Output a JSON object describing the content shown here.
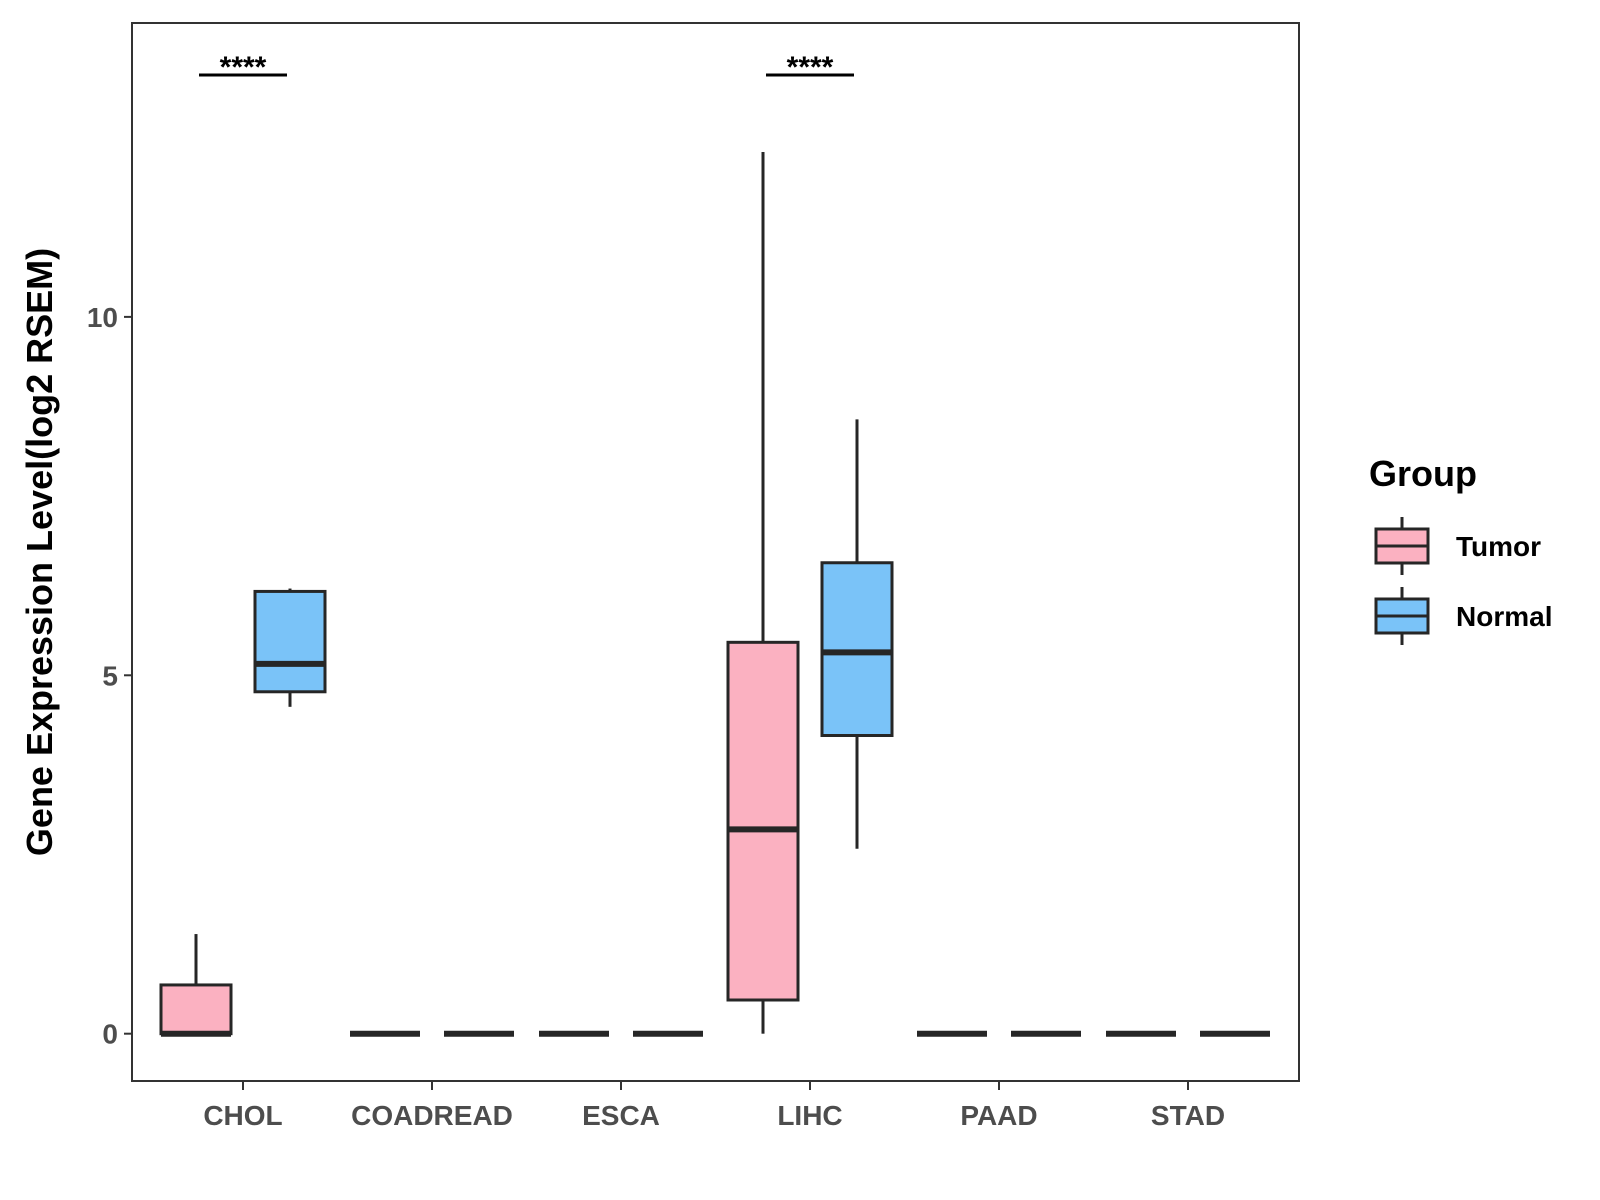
{
  "chart_data": {
    "type": "boxplot",
    "title": "",
    "xlabel": "",
    "ylabel": "Gene Expression Level(log2 RSEM)",
    "categories": [
      "CHOL",
      "COADREAD",
      "ESCA",
      "LIHC",
      "PAAD",
      "STAD"
    ],
    "yticks": [
      0,
      5,
      10
    ],
    "ylim": [
      -0.66,
      14.1
    ],
    "legend": {
      "title": "Group",
      "position": "right",
      "entries": [
        {
          "name": "Tumor",
          "color": "#fbb1c1"
        },
        {
          "name": "Normal",
          "color": "#7ac3f8"
        }
      ]
    },
    "series": [
      {
        "name": "Tumor",
        "color": "#fbb1c1",
        "boxes": [
          {
            "category": "CHOL",
            "min": 0,
            "q1": 0,
            "median": 0,
            "q3": 0.68,
            "max": 1.39
          },
          {
            "category": "COADREAD",
            "min": 0,
            "q1": 0,
            "median": 0,
            "q3": 0,
            "max": 0
          },
          {
            "category": "ESCA",
            "min": 0,
            "q1": 0,
            "median": 0,
            "q3": 0,
            "max": 0
          },
          {
            "category": "LIHC",
            "min": 0,
            "q1": 0.47,
            "median": 2.85,
            "q3": 5.46,
            "max": 12.3
          },
          {
            "category": "PAAD",
            "min": 0,
            "q1": 0,
            "median": 0,
            "q3": 0,
            "max": 0
          },
          {
            "category": "STAD",
            "min": 0,
            "q1": 0,
            "median": 0,
            "q3": 0,
            "max": 0
          }
        ]
      },
      {
        "name": "Normal",
        "color": "#7ac3f8",
        "boxes": [
          {
            "category": "CHOL",
            "min": 4.56,
            "q1": 4.77,
            "median": 5.16,
            "q3": 6.17,
            "max": 6.21
          },
          {
            "category": "COADREAD",
            "min": 0,
            "q1": 0,
            "median": 0,
            "q3": 0,
            "max": 0
          },
          {
            "category": "ESCA",
            "min": 0,
            "q1": 0,
            "median": 0,
            "q3": 0,
            "max": 0
          },
          {
            "category": "LIHC",
            "min": 2.58,
            "q1": 4.16,
            "median": 5.32,
            "q3": 6.57,
            "max": 8.57
          },
          {
            "category": "PAAD",
            "min": 0,
            "q1": 0,
            "median": 0,
            "q3": 0,
            "max": 0
          },
          {
            "category": "STAD",
            "min": 0,
            "q1": 0,
            "median": 0,
            "q3": 0,
            "max": 0
          }
        ]
      }
    ],
    "annotations": [
      {
        "category": "CHOL",
        "text": "****"
      },
      {
        "category": "LIHC",
        "text": "****"
      }
    ]
  }
}
